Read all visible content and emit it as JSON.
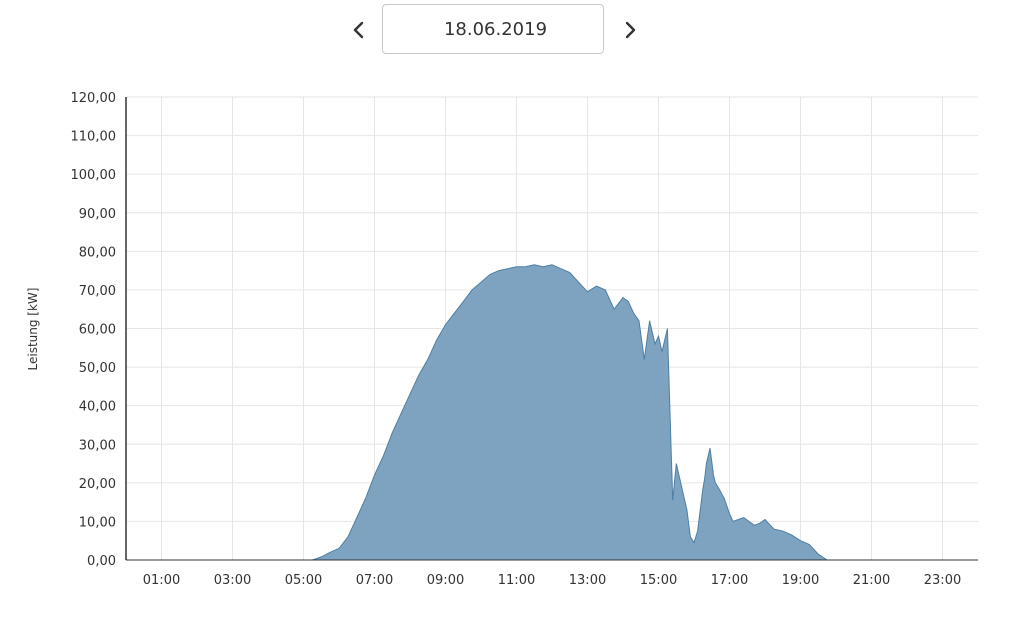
{
  "date_nav": {
    "date_value": "18.06.2019",
    "prev_icon": "chevron-left-icon",
    "next_icon": "chevron-right-icon",
    "calendar_icon": "calendar-icon"
  },
  "colors": {
    "area_fill": "#7da3c0",
    "area_stroke": "#4e7fa3",
    "grid": "#e6e6e6",
    "axis": "#333333"
  },
  "chart_data": {
    "type": "area",
    "title": "",
    "xlabel": "",
    "ylabel": "Leistung [kW]",
    "x_unit": "hour_of_day",
    "xlim": [
      0,
      24
    ],
    "ylim": [
      0,
      120
    ],
    "grid": true,
    "legend": "none",
    "yticks": [
      0,
      10,
      20,
      30,
      40,
      50,
      60,
      70,
      80,
      90,
      100,
      110,
      120
    ],
    "ytick_labels": [
      "0,00",
      "10,00",
      "20,00",
      "30,00",
      "40,00",
      "50,00",
      "60,00",
      "70,00",
      "80,00",
      "90,00",
      "100,00",
      "110,00",
      "120,00"
    ],
    "xticks": [
      1,
      3,
      5,
      7,
      9,
      11,
      13,
      15,
      17,
      19,
      21,
      23
    ],
    "xtick_labels": [
      "01:00",
      "03:00",
      "05:00",
      "07:00",
      "09:00",
      "11:00",
      "13:00",
      "15:00",
      "17:00",
      "19:00",
      "21:00",
      "23:00"
    ],
    "series": [
      {
        "x": [
          5.25,
          5.5,
          5.75,
          6.0,
          6.25,
          6.5,
          6.75,
          7.0,
          7.25,
          7.5,
          7.75,
          8.0,
          8.25,
          8.5,
          8.75,
          9.0,
          9.25,
          9.5,
          9.75,
          10.0,
          10.25,
          10.5,
          10.75,
          11.0,
          11.25,
          11.5,
          11.75,
          12.0,
          12.25,
          12.5,
          12.75,
          13.0,
          13.25,
          13.5,
          13.75,
          14.0,
          14.15,
          14.3,
          14.45,
          14.6,
          14.75,
          14.9,
          15.0,
          15.1,
          15.25,
          15.4,
          15.5,
          15.65,
          15.8,
          15.9,
          16.0,
          16.1,
          16.25,
          16.3,
          16.35,
          16.45,
          16.55,
          16.6,
          16.7,
          16.85,
          17.0,
          17.1,
          17.25,
          17.4,
          17.55,
          17.7,
          17.85,
          18.0,
          18.25,
          18.5,
          18.75,
          19.0,
          19.25,
          19.5,
          19.75,
          20.0,
          20.25,
          20.5,
          20.75,
          21.0,
          21.25,
          21.5,
          21.75
        ],
        "y": [
          0,
          0.8,
          2,
          3,
          6,
          11,
          16,
          22,
          27,
          33,
          38,
          43,
          48,
          52,
          57,
          61,
          64,
          67,
          70,
          72,
          74,
          75,
          75.5,
          76,
          76,
          76.5,
          76,
          76.5,
          75.5,
          74.5,
          72,
          69.5,
          71,
          70,
          65,
          68,
          67,
          64,
          62,
          52,
          62,
          56,
          58,
          54,
          60,
          15.5,
          25,
          19,
          13,
          6,
          4.5,
          7.5,
          18.5,
          21,
          25,
          29,
          22,
          20,
          18.5,
          16,
          12,
          10,
          10.5,
          11,
          10,
          9,
          9.5,
          10.5,
          8,
          7.5,
          6.5,
          5,
          4,
          1.5,
          0,
          0,
          0,
          0,
          0,
          0,
          0,
          0,
          0
        ]
      }
    ]
  }
}
